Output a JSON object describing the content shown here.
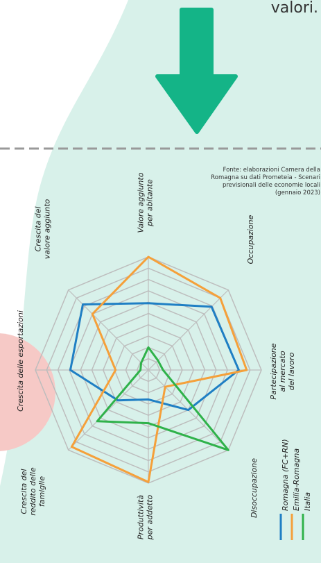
{
  "intro_text_fragment": "valori.",
  "source": [
    "Fonte: elaborazioni Camera della",
    "Romagna su dati Prometeia - Scenari",
    "previsionali delle economie locali",
    "(gennaio 2023)"
  ],
  "chart_data": {
    "type": "radar",
    "categories": [
      [
        "Valore aggiunto",
        "per abitante"
      ],
      [
        "Occupazione"
      ],
      [
        "Partecipazione",
        "al mercato",
        "del lavoro"
      ],
      [
        "Disoccupazione"
      ],
      [
        "Produttività",
        "per addetto"
      ],
      [
        "Crescita del",
        "reddito delle",
        "famiglie"
      ],
      [
        "Crescita delle esportazioni"
      ],
      [
        "Crescita del",
        "valore aggiunto"
      ]
    ],
    "ylim": [
      0,
      10
    ],
    "yticks": [
      1,
      2,
      3,
      4,
      5,
      6,
      7,
      8,
      9,
      10
    ],
    "grid": true,
    "series": [
      {
        "name": "Romagna (FC+RN)",
        "color": "#1f7fc4",
        "values": [
          5.9,
          7.9,
          8.0,
          5.0,
          2.6,
          3.8,
          6.9,
          8.2
        ]
      },
      {
        "name": "Emilia-Romagna",
        "color": "#f5a03a",
        "values": [
          10,
          9.0,
          8.7,
          2.1,
          9.9,
          9.6,
          2.9,
          7.0
        ]
      },
      {
        "name": "Italia",
        "color": "#2fb24a",
        "values": [
          2.0,
          1.2,
          1.3,
          10.0,
          4.7,
          6.4,
          0.7,
          0.9
        ]
      }
    ]
  }
}
